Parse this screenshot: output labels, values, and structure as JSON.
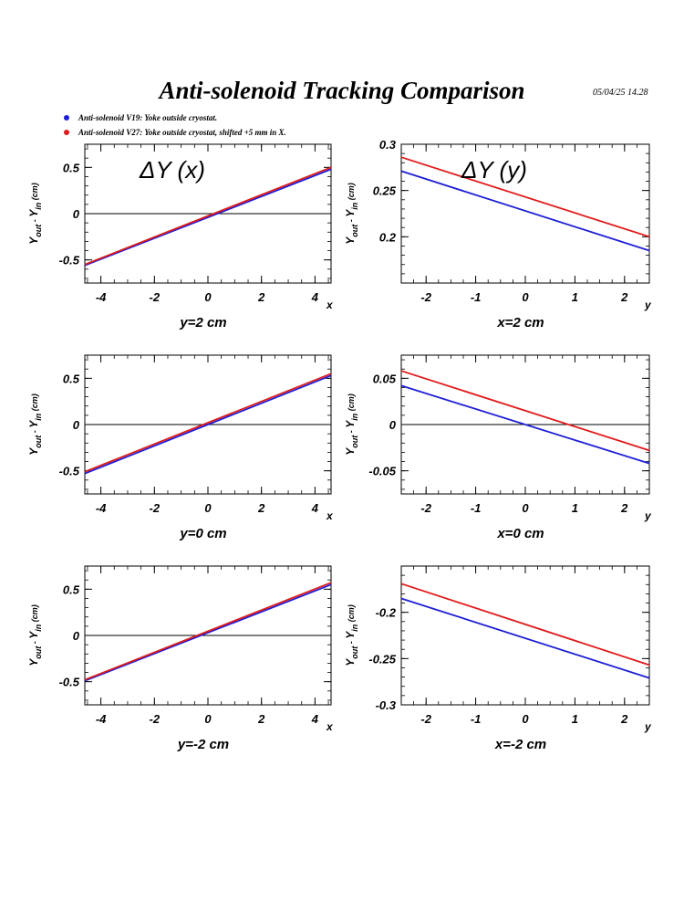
{
  "title": "Anti-solenoid Tracking Comparison",
  "timestamp": "05/04/25   14.28",
  "legend": [
    {
      "label": "Anti-solenoid V19: Yoke outside cryostat.",
      "color": "#1f1fd6"
    },
    {
      "label": "Anti-solenoid V27: Yoke outside cryostat, shifted +5 mm in X.",
      "color": "#e01b1b"
    }
  ],
  "colors": {
    "v19": "#1f1fd6",
    "v27": "#e01b1b",
    "zero_line": "#000000"
  },
  "chart_data": [
    {
      "type": "line",
      "column_title": "ΔY (x)",
      "xlabel": "x",
      "ylabel": "Y_out - Y_in (cm)",
      "caption": "y=2 cm",
      "xlim": [
        -4.6,
        4.6
      ],
      "ylim": [
        -0.75,
        0.75
      ],
      "xticks": [
        -4,
        -2,
        0,
        2,
        4
      ],
      "yticks": [
        -0.5,
        0,
        0.5
      ],
      "ytick_labels": [
        "-0.5",
        "0",
        "0.5"
      ],
      "zero_line": true,
      "series": [
        {
          "name": "Anti-solenoid V19: Yoke outside cryostat.",
          "x": [
            -4.6,
            4.6
          ],
          "y": [
            -0.56,
            0.48
          ]
        },
        {
          "name": "Anti-solenoid V27: Yoke outside cryostat, shifted +5 mm in X.",
          "x": [
            -4.6,
            4.6
          ],
          "y": [
            -0.55,
            0.5
          ]
        }
      ]
    },
    {
      "type": "line",
      "column_title": "ΔY (y)",
      "xlabel": "y",
      "ylabel": "Y_out - Y_in (cm)",
      "caption": "x=2 cm",
      "xlim": [
        -2.5,
        2.5
      ],
      "ylim": [
        0.15,
        0.3
      ],
      "xticks": [
        -2,
        -1,
        0,
        1,
        2
      ],
      "yticks": [
        0.2,
        0.25,
        0.3
      ],
      "ytick_labels": [
        "0.2",
        "0.25",
        "0.3"
      ],
      "zero_line": false,
      "series": [
        {
          "name": "Anti-solenoid V19: Yoke outside cryostat.",
          "x": [
            -2.5,
            2.5
          ],
          "y": [
            0.271,
            0.185
          ]
        },
        {
          "name": "Anti-solenoid V27: Yoke outside cryostat, shifted +5 mm in X.",
          "x": [
            -2.5,
            2.5
          ],
          "y": [
            0.286,
            0.2
          ]
        }
      ]
    },
    {
      "type": "line",
      "column_title": "",
      "xlabel": "x",
      "ylabel": "Y_out - Y_in (cm)",
      "caption": "y=0 cm",
      "xlim": [
        -4.6,
        4.6
      ],
      "ylim": [
        -0.75,
        0.75
      ],
      "xticks": [
        -4,
        -2,
        0,
        2,
        4
      ],
      "yticks": [
        -0.5,
        0,
        0.5
      ],
      "ytick_labels": [
        "-0.5",
        "0",
        "0.5"
      ],
      "zero_line": true,
      "series": [
        {
          "name": "Anti-solenoid V19: Yoke outside cryostat.",
          "x": [
            -4.6,
            4.6
          ],
          "y": [
            -0.53,
            0.53
          ]
        },
        {
          "name": "Anti-solenoid V27: Yoke outside cryostat, shifted +5 mm in X.",
          "x": [
            -4.6,
            4.6
          ],
          "y": [
            -0.51,
            0.55
          ]
        }
      ]
    },
    {
      "type": "line",
      "column_title": "",
      "xlabel": "y",
      "ylabel": "Y_out - Y_in (cm)",
      "caption": "x=0 cm",
      "xlim": [
        -2.5,
        2.5
      ],
      "ylim": [
        -0.075,
        0.075
      ],
      "xticks": [
        -2,
        -1,
        0,
        1,
        2
      ],
      "yticks": [
        -0.05,
        0,
        0.05
      ],
      "ytick_labels": [
        "-0.05",
        "0",
        "0.05"
      ],
      "zero_line": true,
      "series": [
        {
          "name": "Anti-solenoid V19: Yoke outside cryostat.",
          "x": [
            -2.5,
            2.5
          ],
          "y": [
            0.042,
            -0.042
          ]
        },
        {
          "name": "Anti-solenoid V27: Yoke outside cryostat, shifted +5 mm in X.",
          "x": [
            -2.5,
            2.5
          ],
          "y": [
            0.058,
            -0.028
          ]
        }
      ]
    },
    {
      "type": "line",
      "column_title": "",
      "xlabel": "x",
      "ylabel": "Y_out - Y_in (cm)",
      "caption": "y=-2 cm",
      "xlim": [
        -4.6,
        4.6
      ],
      "ylim": [
        -0.75,
        0.75
      ],
      "xticks": [
        -4,
        -2,
        0,
        2,
        4
      ],
      "yticks": [
        -0.5,
        0,
        0.5
      ],
      "ytick_labels": [
        "-0.5",
        "0",
        "0.5"
      ],
      "zero_line": true,
      "series": [
        {
          "name": "Anti-solenoid V19: Yoke outside cryostat.",
          "x": [
            -4.6,
            4.6
          ],
          "y": [
            -0.49,
            0.55
          ]
        },
        {
          "name": "Anti-solenoid V27: Yoke outside cryostat, shifted +5 mm in X.",
          "x": [
            -4.6,
            4.6
          ],
          "y": [
            -0.48,
            0.57
          ]
        }
      ]
    },
    {
      "type": "line",
      "column_title": "",
      "xlabel": "y",
      "ylabel": "Y_out - Y_in (cm)",
      "caption": "x=-2 cm",
      "xlim": [
        -2.5,
        2.5
      ],
      "ylim": [
        -0.3,
        -0.15
      ],
      "xticks": [
        -2,
        -1,
        0,
        1,
        2
      ],
      "yticks": [
        -0.3,
        -0.25,
        -0.2
      ],
      "ytick_labels": [
        "-0.3",
        "-0.25",
        "-0.2"
      ],
      "zero_line": false,
      "series": [
        {
          "name": "Anti-solenoid V19: Yoke outside cryostat.",
          "x": [
            -2.5,
            2.5
          ],
          "y": [
            -0.185,
            -0.271
          ]
        },
        {
          "name": "Anti-solenoid V27: Yoke outside cryostat, shifted +5 mm in X.",
          "x": [
            -2.5,
            2.5
          ],
          "y": [
            -0.169,
            -0.257
          ]
        }
      ]
    }
  ]
}
